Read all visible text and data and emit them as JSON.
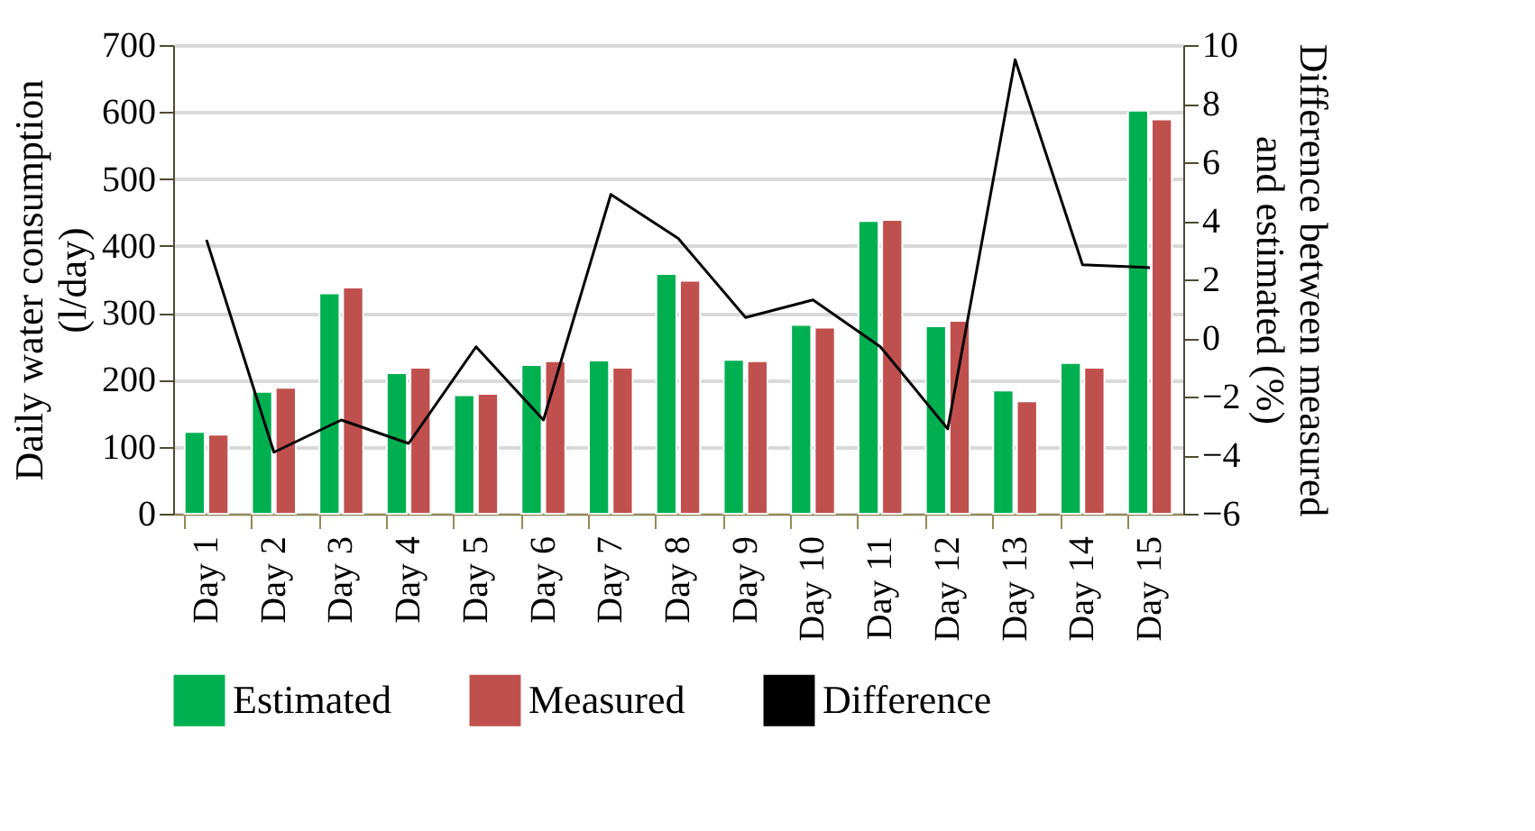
{
  "chart_data": {
    "type": "bar",
    "categories": [
      "Day 1",
      "Day 2",
      "Day 3",
      "Day 4",
      "Day 5",
      "Day 6",
      "Day 7",
      "Day 8",
      "Day 9",
      "Day 10",
      "Day 11",
      "Day 12",
      "Day 13",
      "Day 14",
      "Day 15"
    ],
    "series": [
      {
        "name": "Estimated",
        "color": "#00b050",
        "values": [
          122,
          182,
          329,
          210,
          177,
          222,
          229,
          358,
          230,
          282,
          437,
          280,
          184,
          225,
          602
        ]
      },
      {
        "name": "Measured",
        "color": "#c0504d",
        "values": [
          118,
          188,
          338,
          218,
          179,
          228,
          218,
          348,
          228,
          278,
          439,
          288,
          168,
          218,
          589
        ]
      },
      {
        "name": "Difference",
        "type": "line",
        "axis": "y2",
        "color": "#000000",
        "values": [
          3.35,
          -3.9,
          -2.8,
          -3.6,
          -0.3,
          -2.8,
          4.9,
          3.4,
          0.7,
          1.3,
          -0.3,
          -3.1,
          9.5,
          2.5,
          2.4
        ]
      }
    ],
    "ylabel": "Daily water consumption (l/day)",
    "y2label": "Difference between measured and estimated (%)",
    "ylim": [
      0,
      700
    ],
    "yticks": [
      0,
      100,
      200,
      300,
      400,
      500,
      600,
      700
    ],
    "y2lim": [
      -6,
      10
    ],
    "y2ticks": [
      -6,
      -4,
      -2,
      0,
      2,
      4,
      6,
      8,
      10
    ],
    "grid": "y",
    "legend": "bottom",
    "marker": "none",
    "line_style": "solid"
  }
}
